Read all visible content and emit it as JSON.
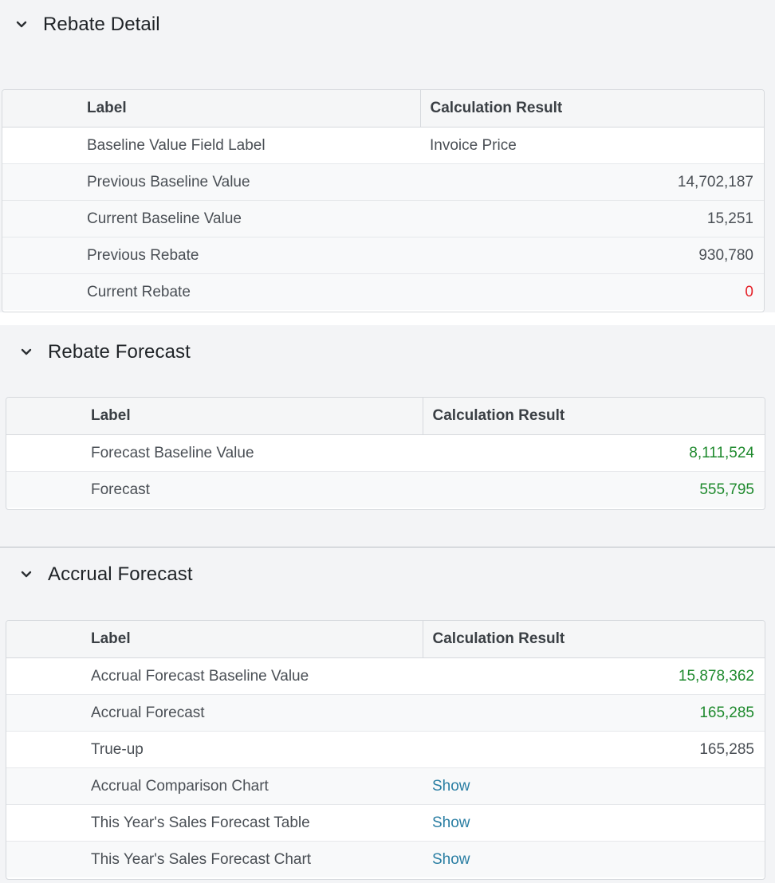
{
  "sections": [
    {
      "title": "Rebate Detail",
      "columns": [
        "Label",
        "Calculation Result"
      ],
      "rows": [
        {
          "label": "Baseline Value Field Label",
          "result": "Invoice Price"
        },
        {
          "label": "Previous Baseline Value",
          "result": "14,702,187"
        },
        {
          "label": "Current Baseline Value",
          "result": "15,251"
        },
        {
          "label": "Previous Rebate",
          "result": "930,780"
        },
        {
          "label": "Current Rebate",
          "result": "0"
        }
      ]
    },
    {
      "title": "Rebate Forecast",
      "columns": [
        "Label",
        "Calculation Result"
      ],
      "rows": [
        {
          "label": "Forecast Baseline Value",
          "result": "8,111,524"
        },
        {
          "label": "Forecast",
          "result": "555,795"
        }
      ]
    },
    {
      "title": "Accrual Forecast",
      "columns": [
        "Label",
        "Calculation Result"
      ],
      "rows": [
        {
          "label": "Accrual Forecast Baseline Value",
          "result": "15,878,362"
        },
        {
          "label": "Accrual Forecast",
          "result": "165,285"
        },
        {
          "label": "True-up",
          "result": "165,285"
        },
        {
          "label": "Accrual Comparison Chart",
          "result": "Show"
        },
        {
          "label": "This Year's Sales Forecast Table",
          "result": "Show"
        },
        {
          "label": "This Year's Sales Forecast Chart",
          "result": "Show"
        }
      ]
    }
  ],
  "colors": {
    "negative_or_zero": "#e5242b",
    "forecast_value": "#1f8a2e",
    "link": "#2a7ea3"
  },
  "icons": {
    "collapse": "chevron-down-icon"
  }
}
